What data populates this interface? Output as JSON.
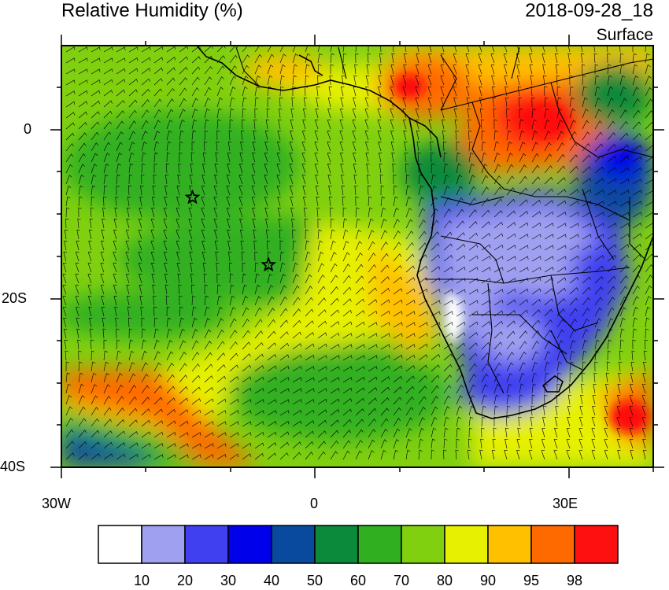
{
  "header": {
    "title": "Relative Humidity (%)",
    "datetime": "2018-09-28_18",
    "level": "Surface"
  },
  "map": {
    "lon_range": [
      -30,
      40
    ],
    "lat_range": [
      -40,
      10
    ],
    "x_ticks": [
      "30W",
      "0",
      "30E"
    ],
    "y_ticks": [
      "0",
      "20S",
      "40S"
    ],
    "markers": [
      {
        "name": "star-1",
        "lon": -14.5,
        "lat": -8
      },
      {
        "name": "star-2",
        "lon": -5.5,
        "lat": -16
      }
    ]
  },
  "colorbar": {
    "colors": [
      "#ffffff",
      "#a0a0f0",
      "#4040f0",
      "#0000ea",
      "#0a4a9e",
      "#0a8a3a",
      "#30b020",
      "#80d010",
      "#e6f000",
      "#ffc000",
      "#ff6a00",
      "#ff1010"
    ],
    "labels": [
      "10",
      "20",
      "30",
      "40",
      "50",
      "60",
      "70",
      "80",
      "90",
      "95",
      "98"
    ]
  }
}
